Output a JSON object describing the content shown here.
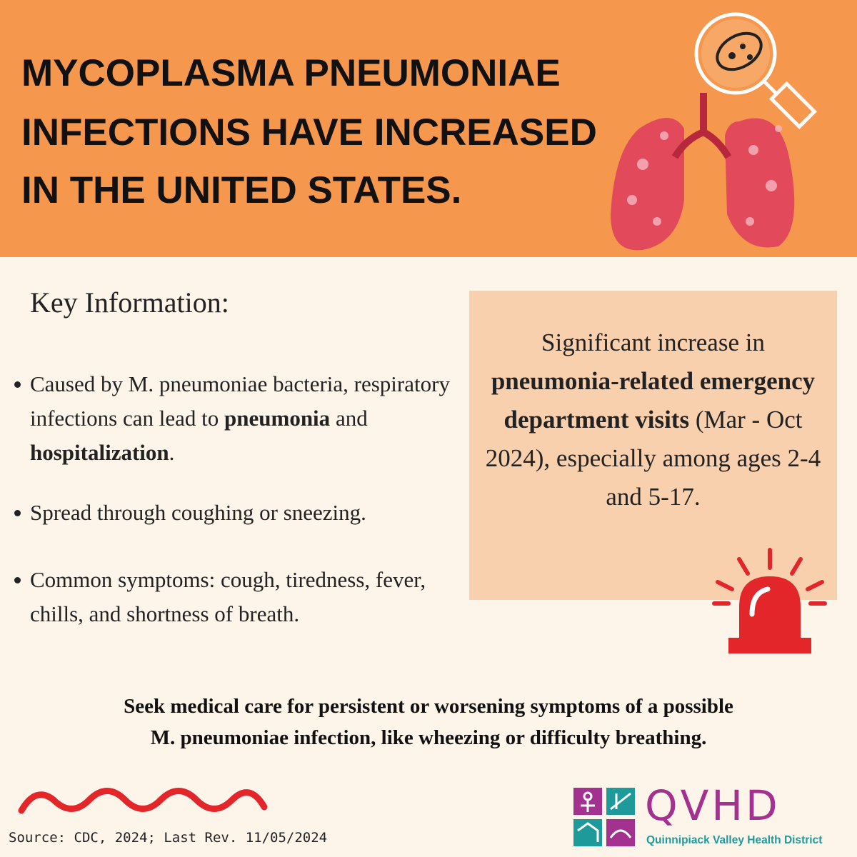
{
  "header": {
    "title_lines": [
      "MYCOPLASMA PNEUMONIAE",
      "INFECTIONS HAVE INCREASED",
      "IN THE UNITED STATES."
    ]
  },
  "key_info": {
    "heading": "Key Information:",
    "bullets": [
      [
        {
          "text": "Caused by M. pneumoniae bacteria, respiratory infections can lead to ",
          "bold": false
        },
        {
          "text": "pneumonia",
          "bold": true
        },
        {
          "text": " and ",
          "bold": false
        },
        {
          "text": "hospitalization",
          "bold": true
        },
        {
          "text": ".",
          "bold": false
        }
      ],
      [
        {
          "text": "Spread through coughing or sneezing.",
          "bold": false
        }
      ],
      [
        {
          "text": "Common symptoms: cough, tiredness, fever, chills, and shortness of breath.",
          "bold": false
        }
      ]
    ]
  },
  "callout": [
    {
      "text": "Significant increase in ",
      "bold": false
    },
    {
      "text": "pneumonia-related emergency department visits",
      "bold": true
    },
    {
      "text": " (Mar - Oct 2024), especially among ages 2-4 and 5-17.",
      "bold": false
    }
  ],
  "advice": [
    "Seek medical care for persistent or worsening symptoms of a possible",
    "M. pneumoniae infection, like wheezing or difficulty breathing."
  ],
  "source": "Source: CDC, 2024; Last Rev. 11/05/2024",
  "logo": {
    "acronym": "QVHD",
    "name": "Quinnipiack Valley Health District"
  }
}
